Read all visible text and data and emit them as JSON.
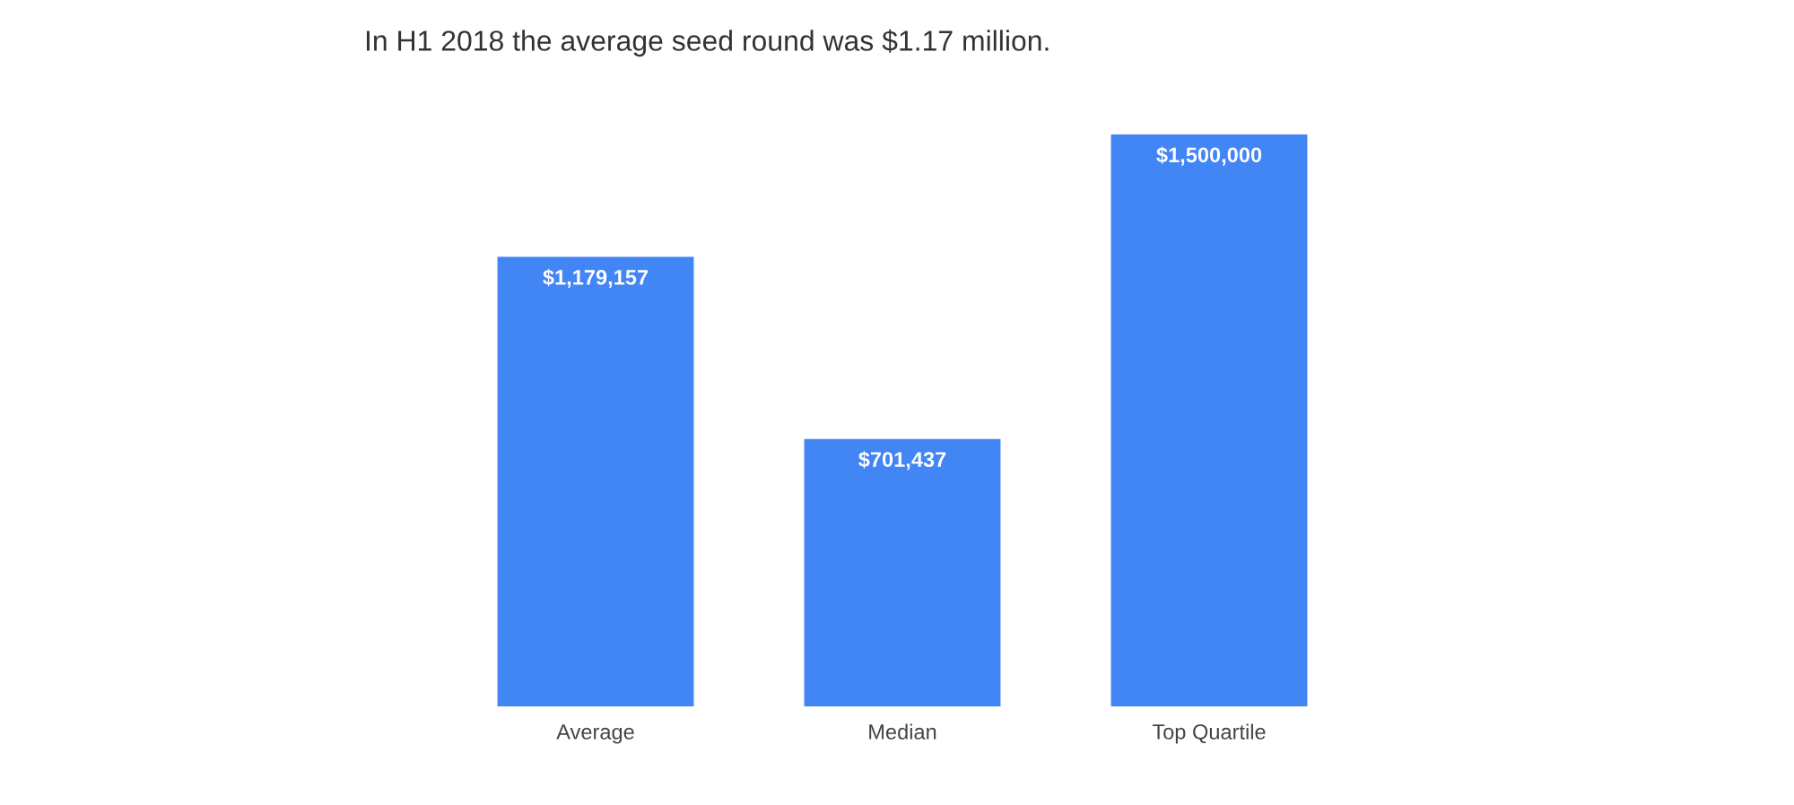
{
  "chart_data": {
    "type": "bar",
    "title": "In H1 2018 the average seed round was $1.17 million.",
    "categories": [
      "Average",
      "Median",
      "Top Quartile"
    ],
    "values": [
      1179157,
      701437,
      1500000
    ],
    "value_labels": [
      "$1,179,157",
      "$701,437",
      "$1,500,000"
    ],
    "color": "#4285f4"
  }
}
